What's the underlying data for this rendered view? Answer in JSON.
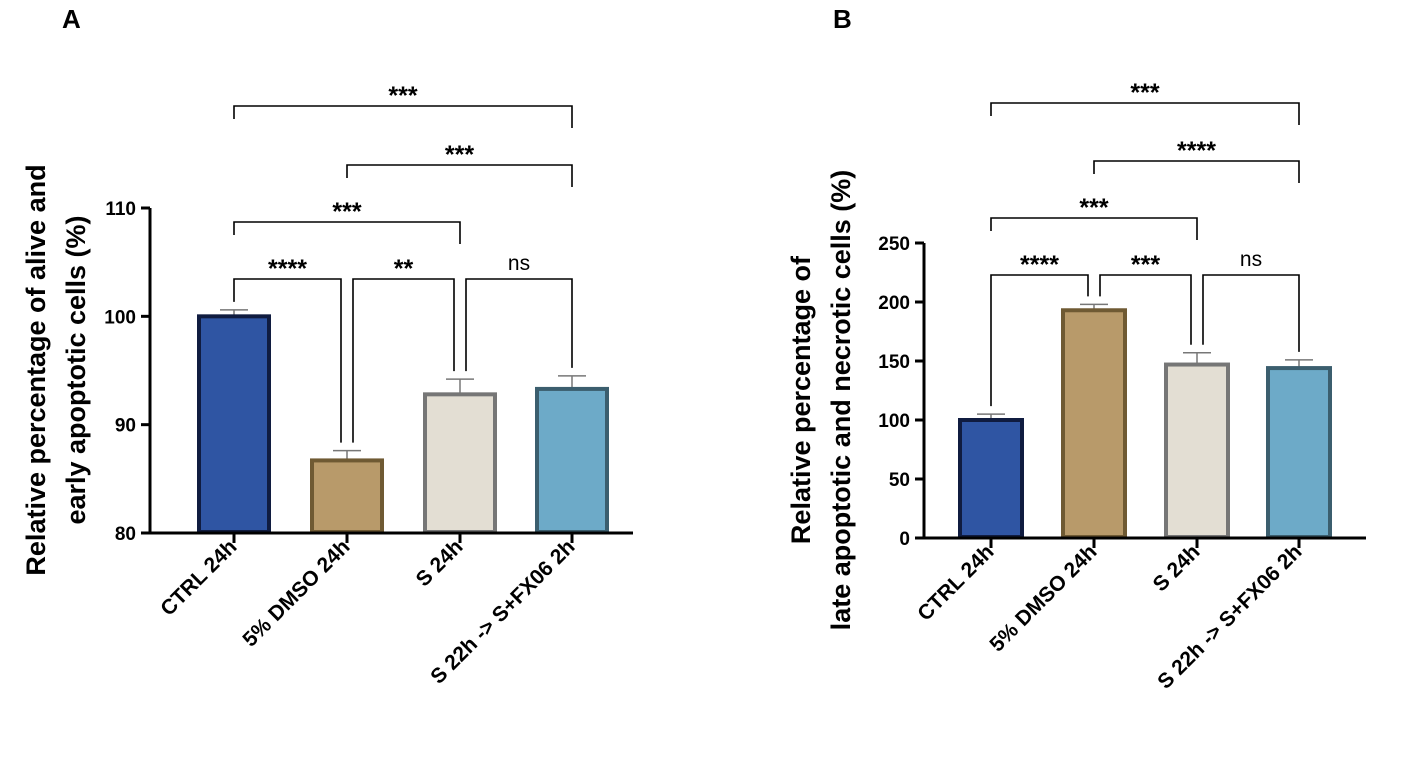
{
  "chart_data": [
    {
      "panel": "A",
      "type": "bar",
      "title": "",
      "xlabel": "",
      "ylabel": "Relative percentage of alive and early apoptotic cells (%)",
      "ylabel_lines": [
        "Relative percentage of alive and",
        "early apoptotic cells (%)"
      ],
      "ylim": [
        80,
        110
      ],
      "yticks": [
        80,
        90,
        100,
        110
      ],
      "categories": [
        "CTRL 24h",
        "5% DMSO 24h",
        "S 24h",
        "S 22h -> S+FX06 2h"
      ],
      "values": [
        100,
        86.7,
        92.8,
        93.3
      ],
      "errors": [
        0.6,
        0.9,
        1.4,
        1.2
      ],
      "fill_colors": [
        "#2f55a3",
        "#b89a6a",
        "#e3ded3",
        "#6daac8"
      ],
      "edge_colors": [
        "#101c40",
        "#6f5a33",
        "#767676",
        "#3b5e6e"
      ],
      "comparisons": [
        {
          "from": 0,
          "to": 1,
          "label": "****"
        },
        {
          "from": 1,
          "to": 2,
          "label": "**"
        },
        {
          "from": 2,
          "to": 3,
          "label": "ns"
        },
        {
          "from": 0,
          "to": 2,
          "label": "***"
        },
        {
          "from": 1,
          "to": 3,
          "label": "***"
        },
        {
          "from": 0,
          "to": 3,
          "label": "***"
        }
      ]
    },
    {
      "panel": "B",
      "type": "bar",
      "title": "",
      "xlabel": "",
      "ylabel": "Relative percentage of late apoptotic and necrotic cells (%)",
      "ylabel_lines": [
        "Relative percentage of",
        "late apoptotic and necrotic cells (%)"
      ],
      "ylim": [
        0,
        250
      ],
      "yticks": [
        0,
        50,
        100,
        150,
        200,
        250
      ],
      "categories": [
        "CTRL 24h",
        "5% DMSO 24h",
        "S 24h",
        "S 22h -> S+FX06 2h"
      ],
      "values": [
        100,
        193,
        147,
        144
      ],
      "errors": [
        5,
        5,
        10,
        7
      ],
      "fill_colors": [
        "#2f55a3",
        "#b89a6a",
        "#e3ded3",
        "#6daac8"
      ],
      "edge_colors": [
        "#101c40",
        "#6f5a33",
        "#767676",
        "#3b5e6e"
      ],
      "comparisons": [
        {
          "from": 0,
          "to": 1,
          "label": "****"
        },
        {
          "from": 1,
          "to": 2,
          "label": "***"
        },
        {
          "from": 2,
          "to": 3,
          "label": "ns"
        },
        {
          "from": 0,
          "to": 2,
          "label": "***"
        },
        {
          "from": 1,
          "to": 3,
          "label": "****"
        },
        {
          "from": 0,
          "to": 3,
          "label": "***"
        }
      ]
    }
  ]
}
